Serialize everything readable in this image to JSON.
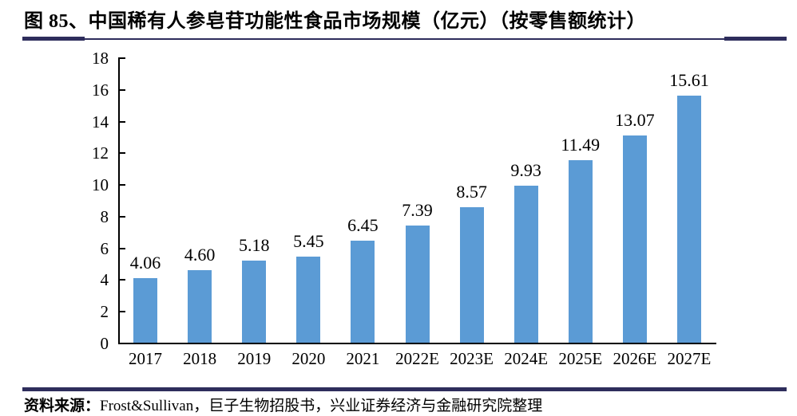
{
  "figure": {
    "title": "图 85、中国稀有人参皂苷功能性食品市场规模（亿元）（按零售额统计）",
    "source_label": "资料来源：",
    "source_text": "Frost&Sullivan，巨子生物招股书，兴业证券经济与金融研究院整理"
  },
  "colors": {
    "bar": "#5B9BD5",
    "rule": "#2E2D5C",
    "axis": "#000000",
    "text": "#000000"
  },
  "chart_data": {
    "type": "bar",
    "title": "中国稀有人参皂苷功能性食品市场规模（亿元）（按零售额统计）",
    "categories": [
      "2017",
      "2018",
      "2019",
      "2020",
      "2021",
      "2022E",
      "2023E",
      "2024E",
      "2025E",
      "2026E",
      "2027E"
    ],
    "values": [
      4.06,
      4.6,
      5.18,
      5.45,
      6.45,
      7.39,
      8.57,
      9.93,
      11.49,
      13.07,
      15.61
    ],
    "data_labels": [
      "4.06",
      "4.60",
      "5.18",
      "5.45",
      "6.45",
      "7.39",
      "8.57",
      "9.93",
      "11.49",
      "13.07",
      "15.61"
    ],
    "xlabel": "",
    "ylabel": "",
    "ylim": [
      0,
      18
    ],
    "ytick_interval": 2,
    "yticks": [
      0,
      2,
      4,
      6,
      8,
      10,
      12,
      14,
      16,
      18
    ],
    "grid": false,
    "legend": "none",
    "bar_color": "#5B9BD5"
  }
}
